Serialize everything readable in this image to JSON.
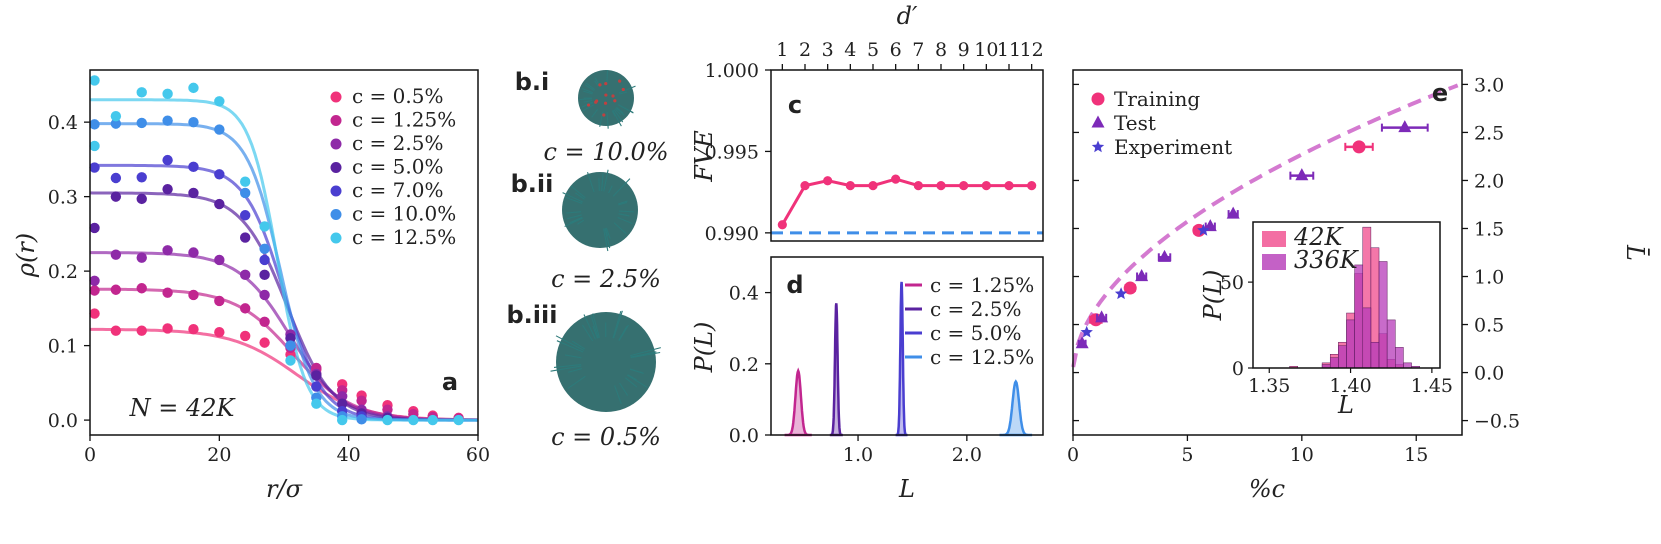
{
  "colors": {
    "c0_5": "#f0327a",
    "c1_25": "#c2268f",
    "c2_5": "#8e2aa8",
    "c5_0": "#5a22a0",
    "c7_0": "#4a3ed0",
    "c10_0": "#3f8ee8",
    "c12_5": "#44c8ec",
    "training": "#f0327a",
    "test": "#7d2ab8",
    "experiment": "#4a3ed0",
    "fit": "#d47ad0",
    "hist42": "#f04a8c",
    "hist336": "#b53ab8",
    "teal": "#1a5c5c"
  },
  "chart_data": [
    {
      "panel": "a",
      "type": "line+scatter",
      "xlabel": "r/σ",
      "ylabel": "ρ(r)",
      "xlim": [
        0,
        60
      ],
      "ylim": [
        -0.02,
        0.47
      ],
      "xticks": [
        "0",
        "20",
        "40",
        "60"
      ],
      "yticks": [
        "0.0",
        "0.1",
        "0.2",
        "0.3",
        "0.4"
      ],
      "annotation": "N = 42K",
      "series": [
        {
          "name": "c = 0.5%",
          "color_key": "c0_5",
          "plateau": 0.122,
          "rmid": 32,
          "width": 5.0,
          "points": [
            [
              0.7,
              0.143
            ],
            [
              4,
              0.12
            ],
            [
              8,
              0.12
            ],
            [
              12,
              0.123
            ],
            [
              16,
              0.122
            ],
            [
              20,
              0.118
            ],
            [
              24,
              0.113
            ],
            [
              27,
              0.104
            ],
            [
              31,
              0.088
            ],
            [
              35,
              0.068
            ],
            [
              39,
              0.048
            ],
            [
              42,
              0.033
            ],
            [
              46,
              0.02
            ],
            [
              50,
              0.012
            ],
            [
              53,
              0.006
            ],
            [
              57,
              0.003
            ]
          ]
        },
        {
          "name": "c = 1.25%",
          "color_key": "c1_25",
          "plateau": 0.176,
          "rmid": 31.5,
          "width": 4.5,
          "points": [
            [
              0.7,
              0.174
            ],
            [
              4,
              0.175
            ],
            [
              8,
              0.177
            ],
            [
              12,
              0.171
            ],
            [
              16,
              0.168
            ],
            [
              20,
              0.16
            ],
            [
              24,
              0.15
            ],
            [
              27,
              0.132
            ],
            [
              31,
              0.097
            ],
            [
              35,
              0.07
            ],
            [
              39,
              0.04
            ],
            [
              42,
              0.026
            ],
            [
              46,
              0.014
            ],
            [
              50,
              0.008
            ],
            [
              53,
              0.004
            ],
            [
              57,
              0.002
            ]
          ]
        },
        {
          "name": "c = 2.5%",
          "color_key": "c2_5",
          "plateau": 0.225,
          "rmid": 31,
          "width": 4.0,
          "points": [
            [
              0.7,
              0.187
            ],
            [
              4,
              0.222
            ],
            [
              8,
              0.218
            ],
            [
              12,
              0.228
            ],
            [
              16,
              0.225
            ],
            [
              20,
              0.215
            ],
            [
              24,
              0.195
            ],
            [
              27,
              0.168
            ],
            [
              31,
              0.115
            ],
            [
              35,
              0.062
            ],
            [
              39,
              0.032
            ],
            [
              42,
              0.014
            ],
            [
              46,
              0.005
            ]
          ]
        },
        {
          "name": "c = 5.0%",
          "color_key": "c5_0",
          "plateau": 0.305,
          "rmid": 30.5,
          "width": 3.5,
          "points": [
            [
              0.7,
              0.258
            ],
            [
              4,
              0.3
            ],
            [
              8,
              0.297
            ],
            [
              12,
              0.31
            ],
            [
              16,
              0.305
            ],
            [
              20,
              0.29
            ],
            [
              24,
              0.245
            ],
            [
              27,
              0.195
            ],
            [
              31,
              0.11
            ],
            [
              35,
              0.06
            ],
            [
              39,
              0.022
            ],
            [
              42,
              0.009
            ],
            [
              46,
              0.003
            ]
          ]
        },
        {
          "name": "c = 7.0%",
          "color_key": "c7_0",
          "plateau": 0.342,
          "rmid": 30,
          "width": 3.0,
          "points": [
            [
              0.7,
              0.339
            ],
            [
              4,
              0.325
            ],
            [
              8,
              0.326
            ],
            [
              12,
              0.349
            ],
            [
              16,
              0.34
            ],
            [
              20,
              0.33
            ],
            [
              24,
              0.275
            ],
            [
              27,
              0.215
            ],
            [
              31,
              0.1
            ],
            [
              35,
              0.045
            ],
            [
              39,
              0.012
            ],
            [
              42,
              0.005
            ]
          ]
        },
        {
          "name": "c = 10.0%",
          "color_key": "c10_0",
          "plateau": 0.398,
          "rmid": 29.5,
          "width": 2.6,
          "points": [
            [
              0.7,
              0.397
            ],
            [
              4,
              0.398
            ],
            [
              8,
              0.399
            ],
            [
              12,
              0.402
            ],
            [
              16,
              0.4
            ],
            [
              20,
              0.39
            ],
            [
              24,
              0.305
            ],
            [
              27,
              0.23
            ],
            [
              31,
              0.1
            ],
            [
              35,
              0.03
            ],
            [
              39,
              0.005
            ],
            [
              42,
              0.001
            ]
          ]
        },
        {
          "name": "c = 12.5%",
          "color_key": "c12_5",
          "plateau": 0.43,
          "rmid": 29,
          "width": 2.2,
          "points": [
            [
              0.7,
              0.456
            ],
            [
              0.7,
              0.368
            ],
            [
              4,
              0.408
            ],
            [
              8,
              0.44
            ],
            [
              12,
              0.438
            ],
            [
              16,
              0.446
            ],
            [
              20,
              0.428
            ],
            [
              24,
              0.32
            ],
            [
              27,
              0.26
            ],
            [
              31,
              0.08
            ],
            [
              35,
              0.022
            ],
            [
              39,
              0.0
            ],
            [
              46,
              0.0
            ],
            [
              50,
              0.0
            ],
            [
              53,
              0.0
            ],
            [
              57,
              0.0
            ]
          ]
        }
      ]
    },
    {
      "panel": "b",
      "type": "image-panels",
      "items": [
        {
          "tag": "b.i",
          "caption": "c = 10.0%"
        },
        {
          "tag": "b.ii",
          "caption": "c = 2.5%"
        },
        {
          "tag": "b.iii",
          "caption": "c = 0.5%"
        }
      ]
    },
    {
      "panel": "c",
      "type": "line",
      "ylabel": "FVE",
      "top_xlabel": "d′",
      "xlim": [
        0.5,
        12.5
      ],
      "ylim": [
        0.9895,
        1.0
      ],
      "top_xticks": [
        "1",
        "2",
        "3",
        "4",
        "5",
        "6",
        "7",
        "8",
        "9",
        "10",
        "11",
        "12"
      ],
      "yticks": [
        "0.990",
        "0.995",
        "1.000"
      ],
      "x": [
        1,
        2,
        3,
        4,
        5,
        6,
        7,
        8,
        9,
        10,
        11,
        12
      ],
      "y": [
        0.9905,
        0.9929,
        0.9932,
        0.9929,
        0.9929,
        0.9933,
        0.9929,
        0.9929,
        0.9929,
        0.9929,
        0.9929,
        0.9929
      ],
      "baseline": 0.99
    },
    {
      "panel": "d",
      "type": "area",
      "xlabel": "L",
      "ylabel": "P(L)",
      "xlim": [
        0.2,
        2.7
      ],
      "ylim": [
        0,
        0.5
      ],
      "xticks": [
        "1.0",
        "2.0"
      ],
      "yticks": [
        "0.0",
        "0.2",
        "0.4"
      ],
      "series": [
        {
          "name": "c = 1.25%",
          "color_key": "c1_25",
          "center": 0.45,
          "peak": 0.18,
          "sigma": 0.025
        },
        {
          "name": "c = 2.5%",
          "color_key": "c5_0",
          "center": 0.8,
          "peak": 0.37,
          "sigma": 0.012
        },
        {
          "name": "c = 5.0%",
          "color_key": "c7_0",
          "center": 1.4,
          "peak": 0.43,
          "sigma": 0.011
        },
        {
          "name": "c = 12.5%",
          "color_key": "c10_0",
          "center": 2.45,
          "peak": 0.15,
          "sigma": 0.03
        }
      ]
    },
    {
      "panel": "e",
      "type": "scatter+line",
      "xlabel": "%c",
      "ylabel": "L̄",
      "xlim": [
        0,
        17
      ],
      "ylim": [
        -0.65,
        3.15
      ],
      "xticks": [
        "0",
        "5",
        "10",
        "15"
      ],
      "yticks": [
        "−0.5",
        "0.0",
        "0.5",
        "1.0",
        "1.5",
        "2.0",
        "2.5",
        "3.0"
      ],
      "fit": {
        "a": 0.0,
        "b": 0.67,
        "p": 0.53
      },
      "series": [
        {
          "name": "Training",
          "marker": "circle",
          "color_key": "training",
          "points": [
            [
              1.0,
              0.55,
              0.25
            ],
            [
              2.5,
              0.88,
              0.2
            ],
            [
              5.5,
              1.48,
              0.2
            ],
            [
              12.5,
              2.35,
              0.6
            ]
          ]
        },
        {
          "name": "Test",
          "marker": "triangle",
          "color_key": "test",
          "points": [
            [
              0.4,
              0.3,
              0.15
            ],
            [
              1.25,
              0.57,
              0.2
            ],
            [
              3.0,
              1.0,
              0.2
            ],
            [
              4.0,
              1.2,
              0.25
            ],
            [
              6.0,
              1.52,
              0.2
            ],
            [
              7.0,
              1.65,
              0.2
            ],
            [
              10.0,
              2.05,
              0.5
            ],
            [
              14.5,
              2.55,
              1.0
            ]
          ]
        },
        {
          "name": "Experiment",
          "marker": "star",
          "color_key": "experiment",
          "points": [
            [
              0.6,
              0.42,
              0
            ],
            [
              2.1,
              0.82,
              0
            ],
            [
              5.7,
              1.48,
              0
            ]
          ]
        }
      ],
      "inset": {
        "type": "histogram",
        "xlabel": "L",
        "ylabel": "P(L)",
        "xlim": [
          1.34,
          1.455
        ],
        "ylim": [
          0,
          85
        ],
        "xticks": [
          "1.35",
          "1.40",
          "1.45"
        ],
        "yticks": [
          "0",
          "50"
        ],
        "legend": [
          "42K",
          "336K"
        ],
        "series": [
          {
            "name": "42K",
            "color_key": "hist42",
            "bins": [
              [
                1.385,
                3
              ],
              [
                1.39,
                8
              ],
              [
                1.395,
                15
              ],
              [
                1.4,
                32
              ],
              [
                1.405,
                55
              ],
              [
                1.41,
                82
              ],
              [
                1.415,
                70
              ],
              [
                1.42,
                20
              ],
              [
                1.425,
                5
              ],
              [
                1.43,
                2
              ],
              [
                1.365,
                1
              ]
            ]
          },
          {
            "name": "336K",
            "color_key": "hist336",
            "bins": [
              [
                1.385,
                2
              ],
              [
                1.39,
                6
              ],
              [
                1.395,
                13
              ],
              [
                1.4,
                28
              ],
              [
                1.405,
                60
              ],
              [
                1.41,
                35
              ],
              [
                1.415,
                15
              ],
              [
                1.42,
                62
              ],
              [
                1.425,
                28
              ],
              [
                1.43,
                12
              ],
              [
                1.435,
                3
              ],
              [
                1.44,
                1
              ]
            ]
          }
        ]
      }
    }
  ]
}
